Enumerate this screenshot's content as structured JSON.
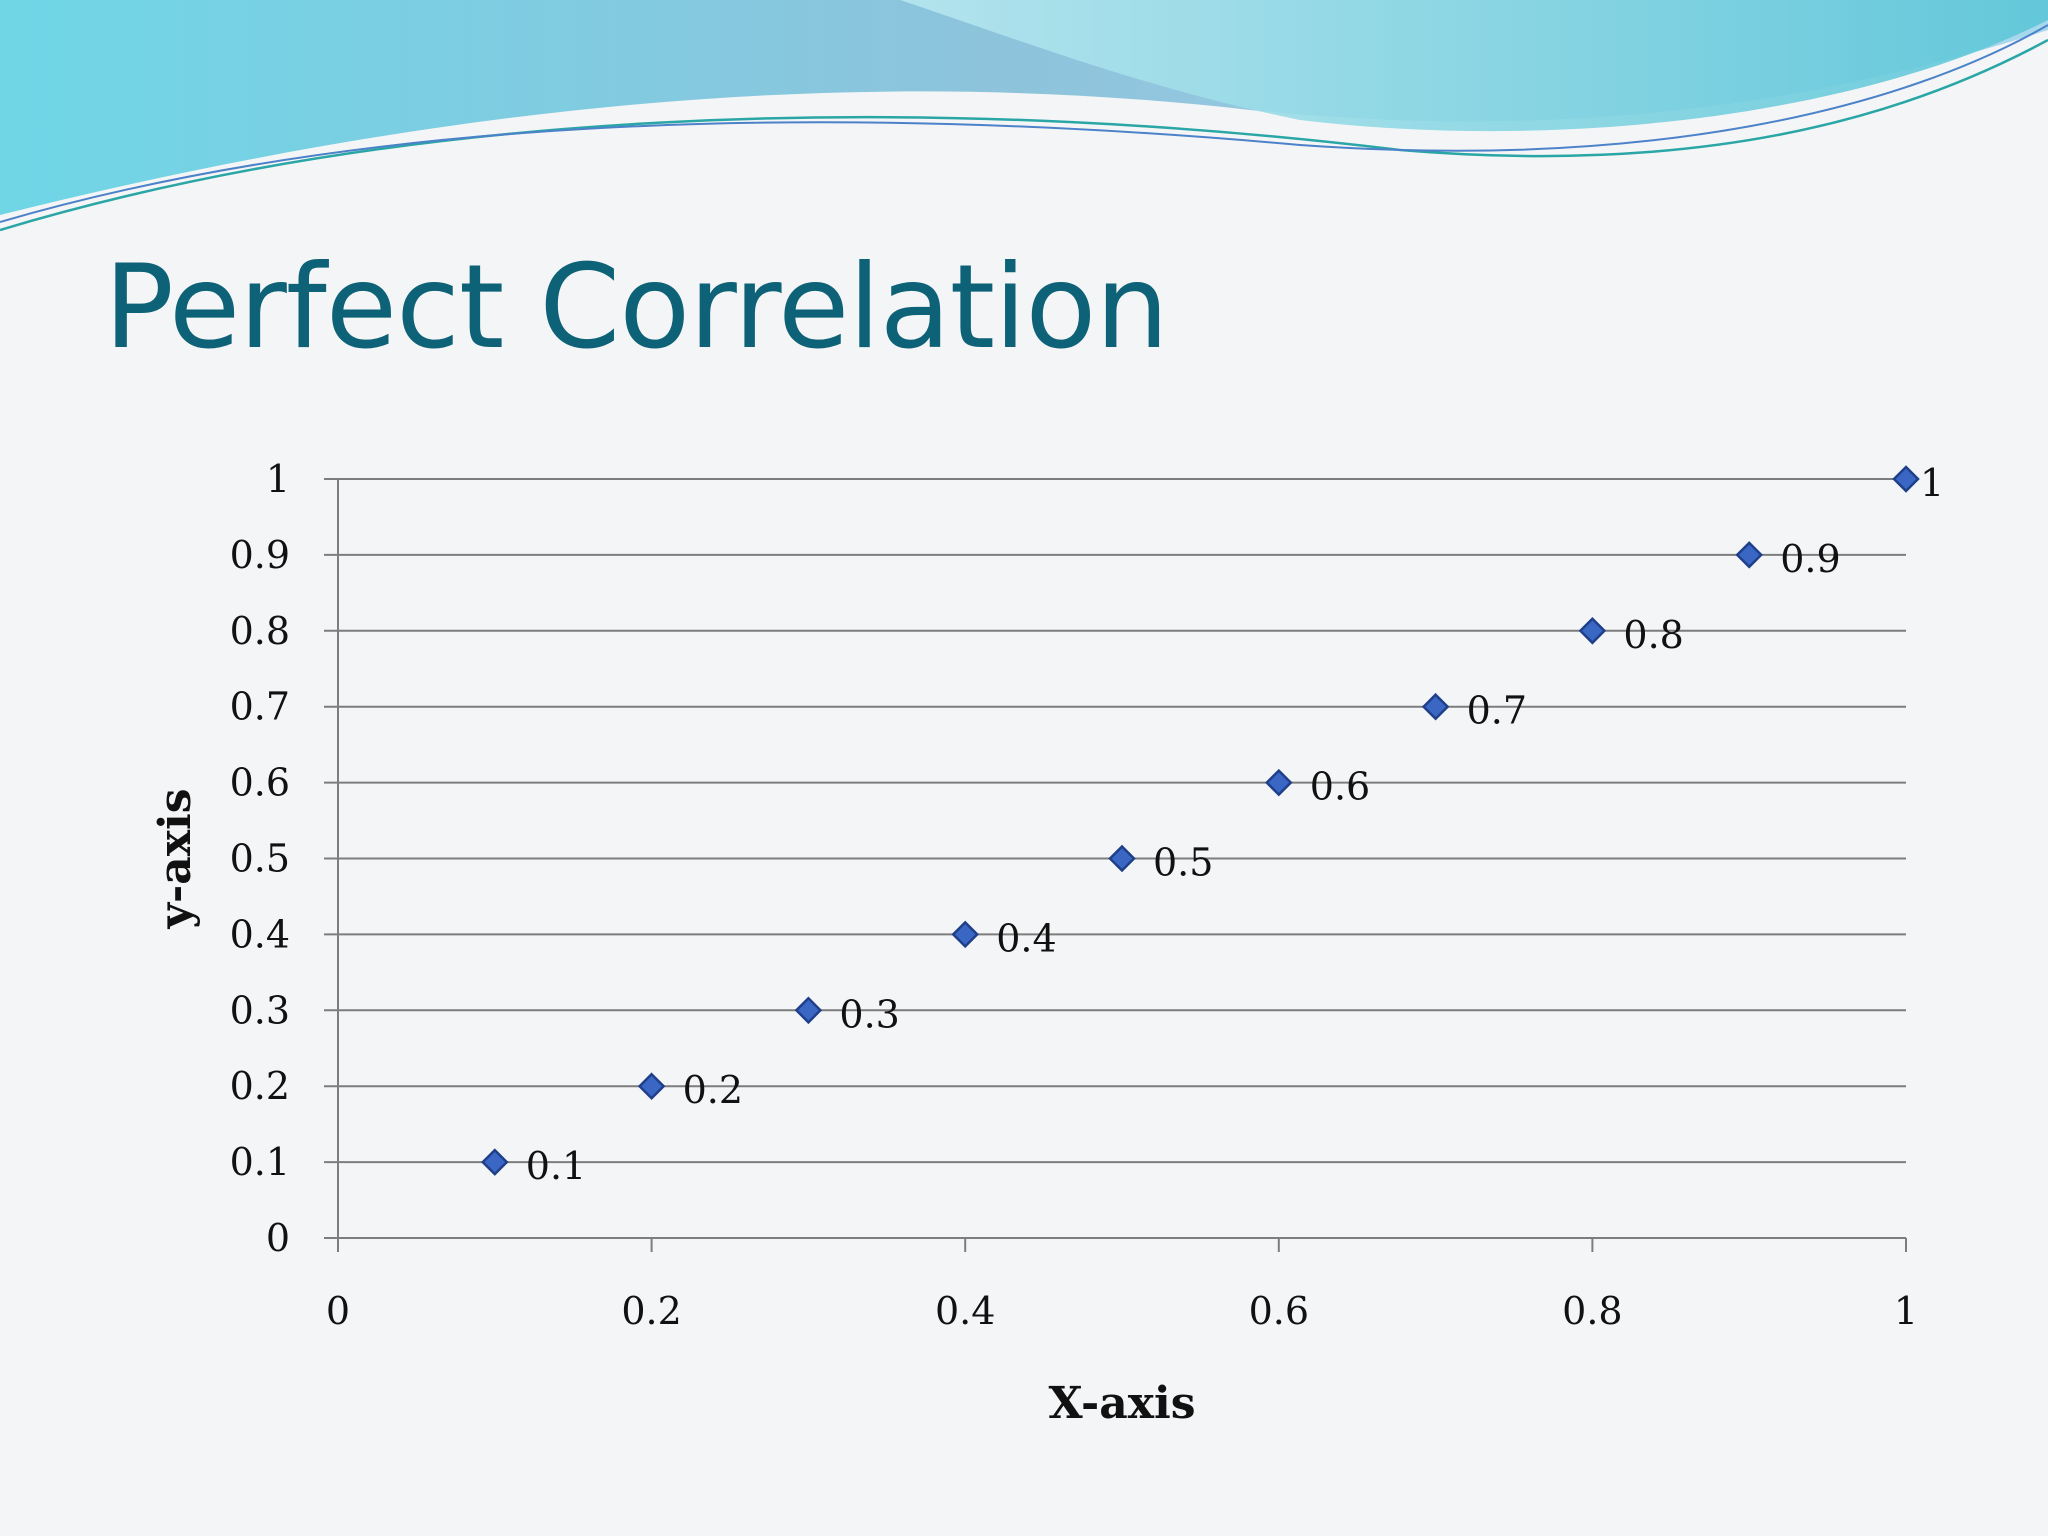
{
  "slide": {
    "title": "Perfect Correlation"
  },
  "colors": {
    "title": "#0e6277",
    "marker": "#3a67c4",
    "wave_light": "#a8dcea",
    "wave_dark": "#6cc4d8"
  },
  "chart_data": {
    "type": "scatter",
    "x": [
      0.1,
      0.2,
      0.3,
      0.4,
      0.5,
      0.6,
      0.7,
      0.8,
      0.9,
      1
    ],
    "y": [
      0.1,
      0.2,
      0.3,
      0.4,
      0.5,
      0.6,
      0.7,
      0.8,
      0.9,
      1
    ],
    "data_labels": [
      "0.1",
      "0.2",
      "0.3",
      "0.4",
      "0.5",
      "0.6",
      "0.7",
      "0.8",
      "0.9",
      "1"
    ],
    "xlabel": "X-axis",
    "ylabel": "y-axis",
    "xlim": [
      0,
      1
    ],
    "ylim": [
      0,
      1
    ],
    "x_ticks": [
      "0",
      "0.2",
      "0.4",
      "0.6",
      "0.8",
      "1"
    ],
    "y_ticks": [
      "0",
      "0.1",
      "0.2",
      "0.3",
      "0.4",
      "0.5",
      "0.6",
      "0.7",
      "0.8",
      "0.9",
      "1"
    ],
    "grid": "horizontal",
    "marker": "diamond",
    "legend": "none"
  }
}
